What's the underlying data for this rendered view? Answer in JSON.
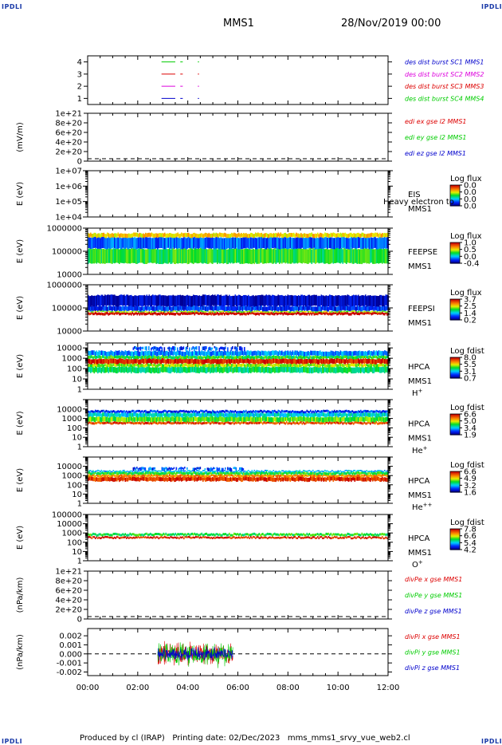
{
  "corner_label": "IPDLI",
  "header": {
    "spacecraft": "MMS1",
    "datetime": "28/Nov/2019 00:00"
  },
  "footer": {
    "produced_by": "Produced by cl (IRAP)",
    "printing_date": "Printing date: 02/Dec/2023",
    "script": "mms_mms1_srvy_vue_web2.cl"
  },
  "x_axis": {
    "ticks": [
      "00:00",
      "02:00",
      "04:00",
      "06:00",
      "08:00",
      "10:00",
      "12:00"
    ],
    "range_hours": [
      0,
      12
    ]
  },
  "colors": {
    "mms1": "#0000cc",
    "mms2": "#dd00dd",
    "mms3": "#dd0000",
    "mms4": "#00cc00",
    "x": "#dd0000",
    "y": "#00cc00",
    "z": "#0000cc"
  },
  "chart_data": [
    {
      "type": "line",
      "id": "burst",
      "yticks": [
        "1",
        "2",
        "3",
        "4"
      ],
      "ylim": [
        0.5,
        4.5
      ],
      "legend": [
        {
          "text": "des dist burst SC1 MMS1",
          "color": "#0000cc"
        },
        {
          "text": "des dist burst SC2 MMS2",
          "color": "#dd00dd"
        },
        {
          "text": "des dist burst SC3 MMS3",
          "color": "#dd0000"
        },
        {
          "text": "des dist burst SC4 MMS4",
          "color": "#00cc00"
        }
      ],
      "series": [
        {
          "name": "SC1",
          "y": 1,
          "segments": [
            [
              2.95,
              3.5
            ],
            [
              3.7,
              3.8
            ],
            [
              4.4,
              4.45
            ]
          ]
        },
        {
          "name": "SC2",
          "y": 2,
          "segments": [
            [
              2.95,
              3.5
            ],
            [
              3.7,
              3.8
            ],
            [
              4.4,
              4.45
            ]
          ]
        },
        {
          "name": "SC3",
          "y": 3,
          "segments": [
            [
              2.95,
              3.5
            ],
            [
              3.7,
              3.8
            ],
            [
              4.4,
              4.45
            ]
          ]
        },
        {
          "name": "SC4",
          "y": 4,
          "segments": [
            [
              2.95,
              3.5
            ],
            [
              3.7,
              3.8
            ],
            [
              4.4,
              4.45
            ]
          ]
        }
      ]
    },
    {
      "type": "line",
      "id": "edi",
      "ylabel": "(mV/m)",
      "yticks": [
        "0",
        "2e+20",
        "4e+20",
        "6e+20",
        "8e+20",
        "1e+21"
      ],
      "ylim": [
        0,
        1e+21
      ],
      "dashed_zero": true,
      "legend": [
        {
          "text": "edi ex gse l2 MMS1",
          "color": "#dd0000"
        },
        {
          "text": "edi ey gse l2 MMS1",
          "color": "#00cc00"
        },
        {
          "text": "edi ez gse l2 MMS1",
          "color": "#0000cc"
        }
      ]
    },
    {
      "type": "heatmap",
      "id": "eis",
      "ylabel": "E (eV)",
      "yticks": [
        "1e+04",
        "1e+05",
        "1e+06",
        "1e+07"
      ],
      "log_y": true,
      "ylim": [
        10000.0,
        10000000.0
      ],
      "labels": [
        "EIS",
        "MMS1"
      ],
      "overlay_text": "Heavy electron to",
      "colorbar_title": "Log flux",
      "colorbar_ticks": [
        "0.0",
        "0.0",
        "0.0",
        "0.0"
      ]
    },
    {
      "type": "heatmap",
      "id": "feepse",
      "ylabel": "E (eV)",
      "yticks": [
        "10000",
        "100000",
        "1000000"
      ],
      "log_y": true,
      "ylim": [
        10000.0,
        1000000.0
      ],
      "labels": [
        "FEEPSE",
        "MMS1"
      ],
      "colorbar_title": "Log flux",
      "colorbar_ticks": [
        "1.0",
        "0.5",
        "0.0",
        "-0.4"
      ],
      "coverage_hours": [
        0,
        12
      ],
      "bands": [
        [
          30000.0,
          130000.0,
          0.5
        ],
        [
          130000.0,
          400000.0,
          0.2
        ],
        [
          400000.0,
          600000.0,
          0.7
        ]
      ]
    },
    {
      "type": "heatmap",
      "id": "feepsi",
      "ylabel": "E (eV)",
      "yticks": [
        "10000",
        "100000",
        "1000000"
      ],
      "log_y": true,
      "ylim": [
        10000.0,
        1000000.0
      ],
      "labels": [
        "FEEPSI",
        "MMS1"
      ],
      "colorbar_title": "Log flux",
      "colorbar_ticks": [
        "3.7",
        "2.5",
        "1.4",
        "0.2"
      ],
      "coverage_hours": [
        0,
        12
      ],
      "bands": [
        [
          50000.0,
          65000.0,
          1.0
        ],
        [
          65000.0,
          75000.0,
          0.6
        ],
        [
          75000.0,
          120000.0,
          0.15
        ],
        [
          120000.0,
          350000.0,
          0.05
        ]
      ]
    },
    {
      "type": "heatmap",
      "id": "hpca_h",
      "ylabel": "E (eV)",
      "yticks": [
        "1",
        "10",
        "100",
        "1000",
        "10000"
      ],
      "log_y": true,
      "ylim": [
        1,
        30000.0
      ],
      "labels": [
        "HPCA",
        "MMS1"
      ],
      "species": "H",
      "species_sup": "+",
      "colorbar_title": "Log fdist",
      "colorbar_ticks": [
        "8.0",
        "5.5",
        "3.1",
        "0.7"
      ],
      "coverage_hours": [
        0,
        12
      ],
      "bands": [
        [
          40,
          150,
          0.45
        ],
        [
          150,
          300,
          0.6
        ],
        [
          300,
          900,
          0.95
        ],
        [
          900,
          1800,
          0.5
        ],
        [
          1800,
          5000,
          0.25
        ]
      ],
      "patches": [
        [
          1.8,
          6.3,
          5000,
          15000,
          0.05
        ]
      ]
    },
    {
      "type": "heatmap",
      "id": "hpca_he1",
      "ylabel": "E (eV)",
      "yticks": [
        "1",
        "10",
        "100",
        "1000",
        "10000"
      ],
      "log_y": true,
      "ylim": [
        1,
        100000.0
      ],
      "labels": [
        "HPCA",
        "MMS1"
      ],
      "species": "He",
      "species_sup": "+",
      "colorbar_title": "Log fdist",
      "colorbar_ticks": [
        "6.6",
        "5.0",
        "3.4",
        "1.9"
      ],
      "coverage_hours": [
        0,
        12
      ],
      "bands": [
        [
          250,
          450,
          0.9
        ],
        [
          450,
          1500,
          0.55
        ],
        [
          1500,
          4000,
          0.35
        ],
        [
          4000,
          7000,
          0.15
        ]
      ]
    },
    {
      "type": "heatmap",
      "id": "hpca_he2",
      "ylabel": "E (eV)",
      "yticks": [
        "1",
        "10",
        "100",
        "1000",
        "10000"
      ],
      "log_y": true,
      "ylim": [
        1,
        100000.0
      ],
      "labels": [
        "HPCA",
        "MMS1"
      ],
      "species": "He",
      "species_sup": "++",
      "colorbar_title": "Log fdist",
      "colorbar_ticks": [
        "6.6",
        "4.9",
        "3.2",
        "1.6"
      ],
      "coverage_hours": [
        0,
        12
      ],
      "bands": [
        [
          250,
          700,
          0.92
        ],
        [
          700,
          1300,
          0.8
        ],
        [
          1300,
          2500,
          0.5
        ],
        [
          2500,
          3500,
          0.3
        ]
      ],
      "patches": [
        [
          1.8,
          6.2,
          3500,
          9000,
          0.05
        ]
      ]
    },
    {
      "type": "heatmap",
      "id": "hpca_o",
      "ylabel": "E (eV)",
      "yticks": [
        "1",
        "10",
        "100",
        "1000",
        "10000",
        "100000"
      ],
      "log_y": true,
      "ylim": [
        1,
        100000.0
      ],
      "labels": [
        "HPCA",
        "MMS1"
      ],
      "species": "O",
      "species_sup": "+",
      "colorbar_title": "Log fdist",
      "colorbar_ticks": [
        "7.8",
        "6.6",
        "5.4",
        "4.2"
      ],
      "coverage_hours": [
        0,
        12
      ],
      "bands": [
        [
          250,
          400,
          0.95
        ],
        [
          500,
          900,
          0.5
        ]
      ]
    },
    {
      "type": "line",
      "id": "divpe",
      "ylabel": "(nPa/km)",
      "yticks": [
        "0",
        "2e+20",
        "4e+20",
        "6e+20",
        "8e+20",
        "1e+21"
      ],
      "ylim": [
        0,
        1e+21
      ],
      "dashed_zero": true,
      "legend": [
        {
          "text": "divPe x gse MMS1",
          "color": "#dd0000"
        },
        {
          "text": "divPe y gse MMS1",
          "color": "#00cc00"
        },
        {
          "text": "divPe z gse MMS1",
          "color": "#0000cc"
        }
      ]
    },
    {
      "type": "line",
      "id": "divpi",
      "ylabel": "(nPa/km)",
      "yticks": [
        "-0.002",
        "-0.001",
        "0.000",
        "0.001",
        "0.002"
      ],
      "ylim": [
        -0.0024,
        0.0028
      ],
      "dashed_zero": true,
      "data_hours": [
        2.8,
        5.8
      ],
      "amplitude": 0.0016,
      "legend": [
        {
          "text": "divPi x gse MMS1",
          "color": "#dd0000"
        },
        {
          "text": "divPi y gse MMS1",
          "color": "#00cc00"
        },
        {
          "text": "divPi z gse MMS1",
          "color": "#0000cc"
        }
      ]
    }
  ]
}
